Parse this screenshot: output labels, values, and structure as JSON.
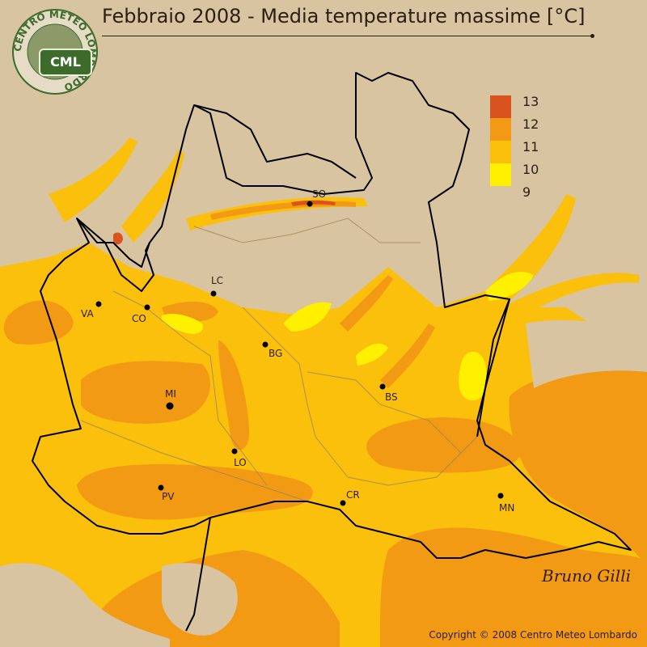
{
  "title": "Febbraio 2008 - Media temperature massime [°C]",
  "copyright": "Copyright © 2008 Centro Meteo Lombardo",
  "logo": {
    "ring_text": "CENTRO METEO LOMBARDO",
    "badge_text": "CML",
    "ring_color": "#3d6b2c"
  },
  "signature": "Bruno Gilli",
  "legend": {
    "entries": [
      {
        "label": "13",
        "color": "#d9531e"
      },
      {
        "label": "12",
        "color": "#f39a14"
      },
      {
        "label": "11",
        "color": "#fbc00c"
      },
      {
        "label": "10",
        "color": "#fff000"
      },
      {
        "label": "9",
        "color": ""
      }
    ]
  },
  "cities": [
    {
      "label": "SO"
    },
    {
      "label": "LC"
    },
    {
      "label": "VA"
    },
    {
      "label": "CO"
    },
    {
      "label": "BG"
    },
    {
      "label": "MI"
    },
    {
      "label": "BS"
    },
    {
      "label": "LO"
    },
    {
      "label": "CR"
    },
    {
      "label": "PV"
    },
    {
      "label": "MN"
    }
  ],
  "colors": {
    "outside": "#d9c4a2",
    "band_11": "#fbc00c",
    "band_12": "#f39a14",
    "band_13": "#d9531e",
    "band_10": "#fff000",
    "border": "#000000",
    "province_lines": "#a08454"
  }
}
